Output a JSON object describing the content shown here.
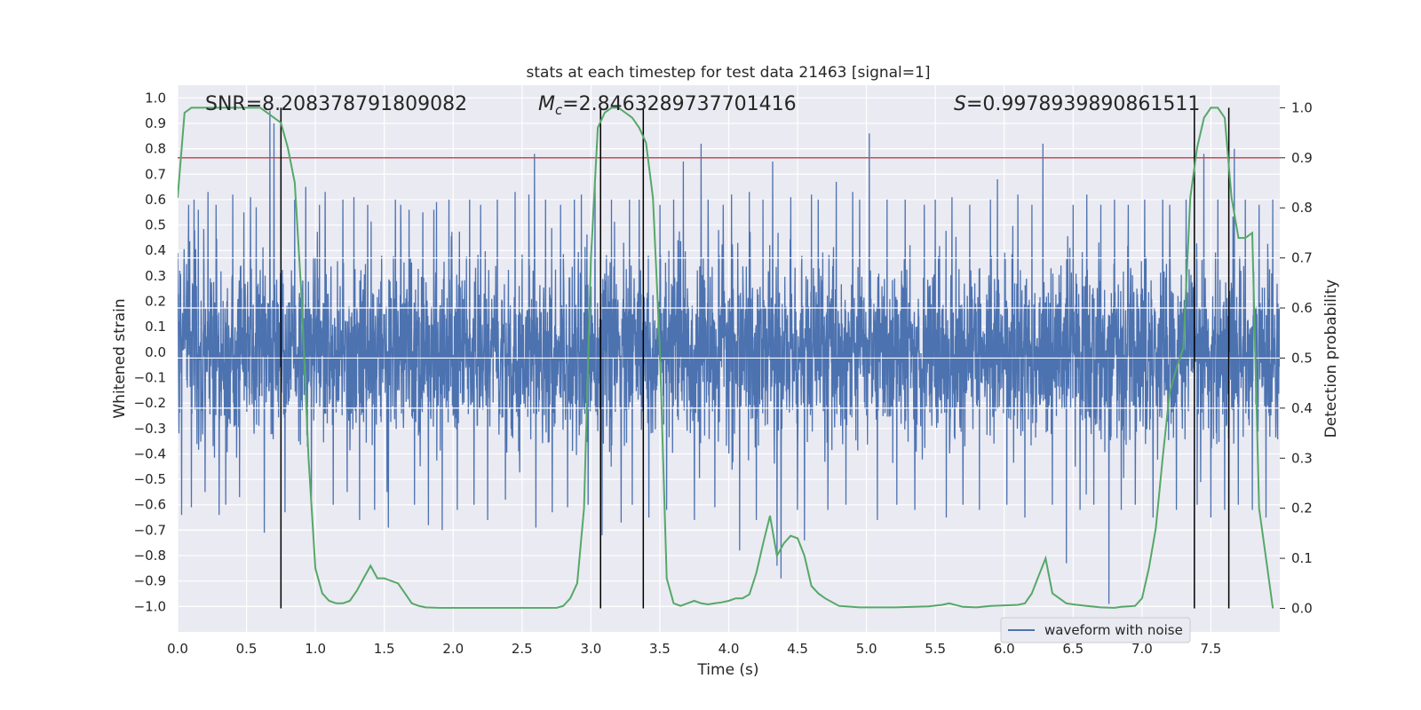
{
  "chart_data": {
    "type": "line",
    "title": "stats at each timestep for test data 21463 [signal=1]",
    "xlabel": "Time (s)",
    "ylabel": "Whitened strain",
    "y2label": "Detection probability",
    "xlim": [
      0.0,
      8.0
    ],
    "ylim": [
      -1.1,
      1.05
    ],
    "y2lim": [
      -0.047,
      1.045
    ],
    "x_ticks": [
      0.0,
      0.5,
      1.0,
      1.5,
      2.0,
      2.5,
      3.0,
      3.5,
      4.0,
      4.5,
      5.0,
      5.5,
      6.0,
      6.5,
      7.0,
      7.5
    ],
    "y_ticks": [
      -1.0,
      -0.9,
      -0.8,
      -0.7,
      -0.6,
      -0.5,
      -0.4,
      -0.3,
      -0.2,
      -0.1,
      0.0,
      0.1,
      0.2,
      0.3,
      0.4,
      0.5,
      0.6,
      0.7,
      0.8,
      0.9,
      1.0
    ],
    "y2_ticks": [
      0.0,
      0.1,
      0.2,
      0.3,
      0.4,
      0.5,
      0.6,
      0.7,
      0.8,
      0.9,
      1.0
    ],
    "y2_gridlines": [
      0.4,
      0.5,
      0.6,
      0.7
    ],
    "annotations": {
      "snr_text": "SNR=8.208378791809082",
      "mc_label": "M",
      "mc_sub": "c",
      "mc_value": "=2.8463289737701416",
      "s_label": "S",
      "s_value": "=0.9978939890861511"
    },
    "threshold": {
      "value": 0.9,
      "axis": "y2",
      "color": "#c44e52"
    },
    "vlines": [
      0.75,
      3.07,
      3.38,
      7.38,
      7.63
    ],
    "vline_range": [
      0.0,
      1.0
    ],
    "waveform": {
      "name": "waveform with noise",
      "color": "#4c72b0",
      "samples": 4096,
      "typical_amplitude": 0.17
    },
    "spikes": [
      [
        0.03,
        -0.64
      ],
      [
        0.08,
        0.58
      ],
      [
        0.1,
        -0.61
      ],
      [
        0.12,
        0.6
      ],
      [
        0.15,
        0.56
      ],
      [
        0.2,
        -0.55
      ],
      [
        0.22,
        0.63
      ],
      [
        0.28,
        0.58
      ],
      [
        0.3,
        -0.64
      ],
      [
        0.35,
        -0.6
      ],
      [
        0.4,
        0.62
      ],
      [
        0.45,
        -0.57
      ],
      [
        0.48,
        0.55
      ],
      [
        0.53,
        0.61
      ],
      [
        0.57,
        0.57
      ],
      [
        0.63,
        -0.71
      ],
      [
        0.67,
        0.95
      ],
      [
        0.7,
        0.9
      ],
      [
        0.78,
        -0.63
      ],
      [
        0.85,
        0.6
      ],
      [
        0.93,
        0.65
      ],
      [
        0.97,
        -0.57
      ],
      [
        1.03,
        0.58
      ],
      [
        1.07,
        0.63
      ],
      [
        1.13,
        -0.6
      ],
      [
        1.2,
        0.6
      ],
      [
        1.23,
        -0.55
      ],
      [
        1.28,
        0.61
      ],
      [
        1.32,
        -0.66
      ],
      [
        1.38,
        0.58
      ],
      [
        1.43,
        -0.62
      ],
      [
        1.52,
        -0.55
      ],
      [
        1.53,
        -0.69
      ],
      [
        1.58,
        0.6
      ],
      [
        1.62,
        0.58
      ],
      [
        1.68,
        0.56
      ],
      [
        1.72,
        -0.6
      ],
      [
        1.78,
        0.55
      ],
      [
        1.82,
        -0.68
      ],
      [
        1.88,
        0.59
      ],
      [
        1.92,
        -0.7
      ],
      [
        1.97,
        0.6
      ],
      [
        2.03,
        -0.62
      ],
      [
        2.12,
        0.6
      ],
      [
        2.15,
        -0.6
      ],
      [
        2.2,
        0.58
      ],
      [
        2.25,
        -0.66
      ],
      [
        2.32,
        0.6
      ],
      [
        2.38,
        -0.58
      ],
      [
        2.45,
        0.63
      ],
      [
        2.55,
        0.62
      ],
      [
        2.59,
        0.78
      ],
      [
        2.6,
        -0.69
      ],
      [
        2.67,
        0.6
      ],
      [
        2.72,
        -0.63
      ],
      [
        2.78,
        0.58
      ],
      [
        2.83,
        -0.61
      ],
      [
        2.88,
        0.6
      ],
      [
        2.93,
        0.62
      ],
      [
        2.98,
        -0.6
      ],
      [
        3.03,
        0.66
      ],
      [
        3.08,
        -0.72
      ],
      [
        3.15,
        0.6
      ],
      [
        3.22,
        -0.67
      ],
      [
        3.28,
        0.6
      ],
      [
        3.3,
        -0.6
      ],
      [
        3.35,
        0.6
      ],
      [
        3.42,
        -0.65
      ],
      [
        3.5,
        0.58
      ],
      [
        3.55,
        -0.62
      ],
      [
        3.6,
        0.6
      ],
      [
        3.67,
        0.75
      ],
      [
        3.75,
        -0.66
      ],
      [
        3.8,
        0.82
      ],
      [
        3.85,
        0.6
      ],
      [
        3.9,
        -0.61
      ],
      [
        3.96,
        0.58
      ],
      [
        4.02,
        0.62
      ],
      [
        4.08,
        -0.78
      ],
      [
        4.15,
        0.63
      ],
      [
        4.2,
        -0.66
      ],
      [
        4.25,
        0.6
      ],
      [
        4.32,
        0.75
      ],
      [
        4.35,
        -0.84
      ],
      [
        4.38,
        -0.89
      ],
      [
        4.45,
        0.61
      ],
      [
        4.5,
        -0.62
      ],
      [
        4.55,
        -0.74
      ],
      [
        4.6,
        0.62
      ],
      [
        4.65,
        0.6
      ],
      [
        4.72,
        -0.62
      ],
      [
        4.78,
        0.67
      ],
      [
        4.85,
        -0.6
      ],
      [
        4.9,
        0.63
      ],
      [
        4.95,
        0.6
      ],
      [
        5.02,
        0.86
      ],
      [
        5.08,
        -0.66
      ],
      [
        5.15,
        0.6
      ],
      [
        5.22,
        -0.6
      ],
      [
        5.28,
        0.6
      ],
      [
        5.35,
        -0.62
      ],
      [
        5.42,
        0.58
      ],
      [
        5.5,
        0.6
      ],
      [
        5.58,
        -0.65
      ],
      [
        5.62,
        0.61
      ],
      [
        5.7,
        -0.6
      ],
      [
        5.75,
        0.58
      ],
      [
        5.82,
        -0.62
      ],
      [
        5.9,
        0.6
      ],
      [
        5.95,
        0.68
      ],
      [
        6.02,
        -0.6
      ],
      [
        6.1,
        0.62
      ],
      [
        6.15,
        -0.65
      ],
      [
        6.2,
        0.58
      ],
      [
        6.28,
        0.82
      ],
      [
        6.35,
        -0.6
      ],
      [
        6.45,
        -0.83
      ],
      [
        6.5,
        0.58
      ],
      [
        6.55,
        -0.62
      ],
      [
        6.6,
        0.62
      ],
      [
        6.65,
        -0.6
      ],
      [
        6.7,
        0.58
      ],
      [
        6.76,
        -0.99
      ],
      [
        6.8,
        0.6
      ],
      [
        6.85,
        -0.62
      ],
      [
        6.9,
        0.58
      ],
      [
        6.95,
        -0.6
      ],
      [
        7.02,
        0.6
      ],
      [
        7.08,
        -0.65
      ],
      [
        7.15,
        0.6
      ],
      [
        7.2,
        0.58
      ],
      [
        7.25,
        -0.62
      ],
      [
        7.32,
        0.6
      ],
      [
        7.4,
        -0.6
      ],
      [
        7.45,
        0.78
      ],
      [
        7.5,
        -0.65
      ],
      [
        7.55,
        0.6
      ],
      [
        7.6,
        -0.62
      ],
      [
        7.67,
        0.8
      ],
      [
        7.7,
        -0.6
      ],
      [
        7.75,
        0.6
      ],
      [
        7.8,
        -0.62
      ],
      [
        7.85,
        0.58
      ],
      [
        7.9,
        -0.65
      ],
      [
        7.95,
        0.6
      ]
    ],
    "probability": {
      "name": "detection probability",
      "color": "#55a868",
      "x": [
        0.0,
        0.05,
        0.1,
        0.15,
        0.2,
        0.3,
        0.4,
        0.5,
        0.6,
        0.65,
        0.7,
        0.75,
        0.8,
        0.85,
        0.9,
        0.95,
        1.0,
        1.05,
        1.1,
        1.15,
        1.2,
        1.25,
        1.3,
        1.35,
        1.4,
        1.45,
        1.5,
        1.55,
        1.6,
        1.65,
        1.7,
        1.75,
        1.8,
        1.9,
        2.0,
        2.2,
        2.4,
        2.6,
        2.75,
        2.8,
        2.85,
        2.9,
        2.95,
        3.0,
        3.05,
        3.1,
        3.15,
        3.2,
        3.25,
        3.3,
        3.35,
        3.4,
        3.45,
        3.5,
        3.55,
        3.6,
        3.65,
        3.7,
        3.75,
        3.8,
        3.85,
        3.9,
        3.95,
        4.0,
        4.05,
        4.1,
        4.15,
        4.2,
        4.25,
        4.3,
        4.35,
        4.4,
        4.45,
        4.5,
        4.55,
        4.6,
        4.65,
        4.7,
        4.8,
        4.95,
        5.2,
        5.45,
        5.55,
        5.6,
        5.7,
        5.8,
        5.9,
        6.0,
        6.1,
        6.15,
        6.2,
        6.25,
        6.3,
        6.35,
        6.45,
        6.5,
        6.6,
        6.7,
        6.8,
        6.85,
        6.9,
        6.95,
        7.0,
        7.05,
        7.1,
        7.15,
        7.2,
        7.25,
        7.3,
        7.35,
        7.4,
        7.45,
        7.5,
        7.55,
        7.6,
        7.65,
        7.7,
        7.75,
        7.8,
        7.85,
        7.9,
        7.95
      ],
      "y": [
        0.82,
        0.99,
        1.0,
        1.0,
        1.0,
        1.0,
        1.0,
        1.0,
        1.0,
        0.99,
        0.98,
        0.97,
        0.92,
        0.85,
        0.62,
        0.3,
        0.08,
        0.03,
        0.015,
        0.01,
        0.01,
        0.015,
        0.035,
        0.06,
        0.085,
        0.06,
        0.06,
        0.055,
        0.05,
        0.03,
        0.01,
        0.005,
        0.002,
        0.001,
        0.001,
        0.001,
        0.001,
        0.001,
        0.001,
        0.005,
        0.02,
        0.05,
        0.2,
        0.7,
        0.96,
        0.99,
        1.0,
        1.0,
        0.99,
        0.98,
        0.96,
        0.93,
        0.82,
        0.52,
        0.06,
        0.01,
        0.005,
        0.01,
        0.015,
        0.01,
        0.008,
        0.01,
        0.012,
        0.015,
        0.02,
        0.02,
        0.028,
        0.07,
        0.13,
        0.185,
        0.105,
        0.13,
        0.145,
        0.14,
        0.105,
        0.045,
        0.03,
        0.02,
        0.005,
        0.002,
        0.002,
        0.004,
        0.007,
        0.01,
        0.003,
        0.002,
        0.005,
        0.006,
        0.007,
        0.01,
        0.03,
        0.065,
        0.1,
        0.03,
        0.01,
        0.008,
        0.005,
        0.002,
        0.001,
        0.003,
        0.004,
        0.005,
        0.02,
        0.08,
        0.16,
        0.3,
        0.43,
        0.48,
        0.52,
        0.82,
        0.92,
        0.98,
        1.0,
        1.0,
        0.98,
        0.82,
        0.74,
        0.74,
        0.75,
        0.2,
        0.1,
        0.0
      ]
    }
  },
  "legend": {
    "label": "waveform with noise"
  }
}
